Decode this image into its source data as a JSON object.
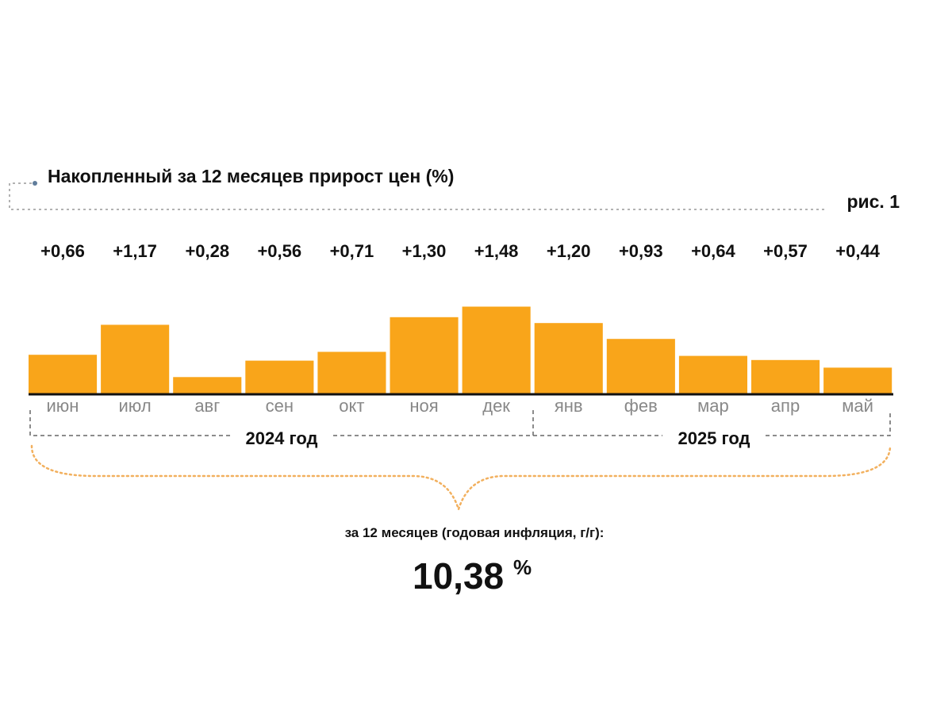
{
  "header": {
    "title": "Накопленный за 12 месяцев прирост цен (%)",
    "figure_label": "рис. 1"
  },
  "chart_data": {
    "type": "bar",
    "categories": [
      "июн",
      "июл",
      "авг",
      "сен",
      "окт",
      "ноя",
      "дек",
      "янв",
      "фев",
      "мар",
      "апр",
      "май"
    ],
    "values": [
      0.66,
      1.17,
      0.28,
      0.56,
      0.71,
      1.3,
      1.48,
      1.2,
      0.93,
      0.64,
      0.57,
      0.44
    ],
    "value_labels": [
      "+0,66",
      "+1,17",
      "+0,28",
      "+0,56",
      "+0,71",
      "+1,30",
      "+1,48",
      "+1,20",
      "+0,93",
      "+0,64",
      "+0,57",
      "+0,44"
    ],
    "ylim": [
      0,
      1.5
    ],
    "grid": false,
    "bar_color": "#F9A51A",
    "year_groups": [
      {
        "label": "2024 год",
        "start": 0,
        "end": 6
      },
      {
        "label": "2025 год",
        "start": 7,
        "end": 11
      }
    ]
  },
  "summary": {
    "caption": "за 12 месяцев (годовая инфляция, г/г):",
    "value": "10,38",
    "unit": "%"
  },
  "colors": {
    "accent": "#F9A51A",
    "brace": "#F2B05E",
    "dash": "#777777"
  }
}
